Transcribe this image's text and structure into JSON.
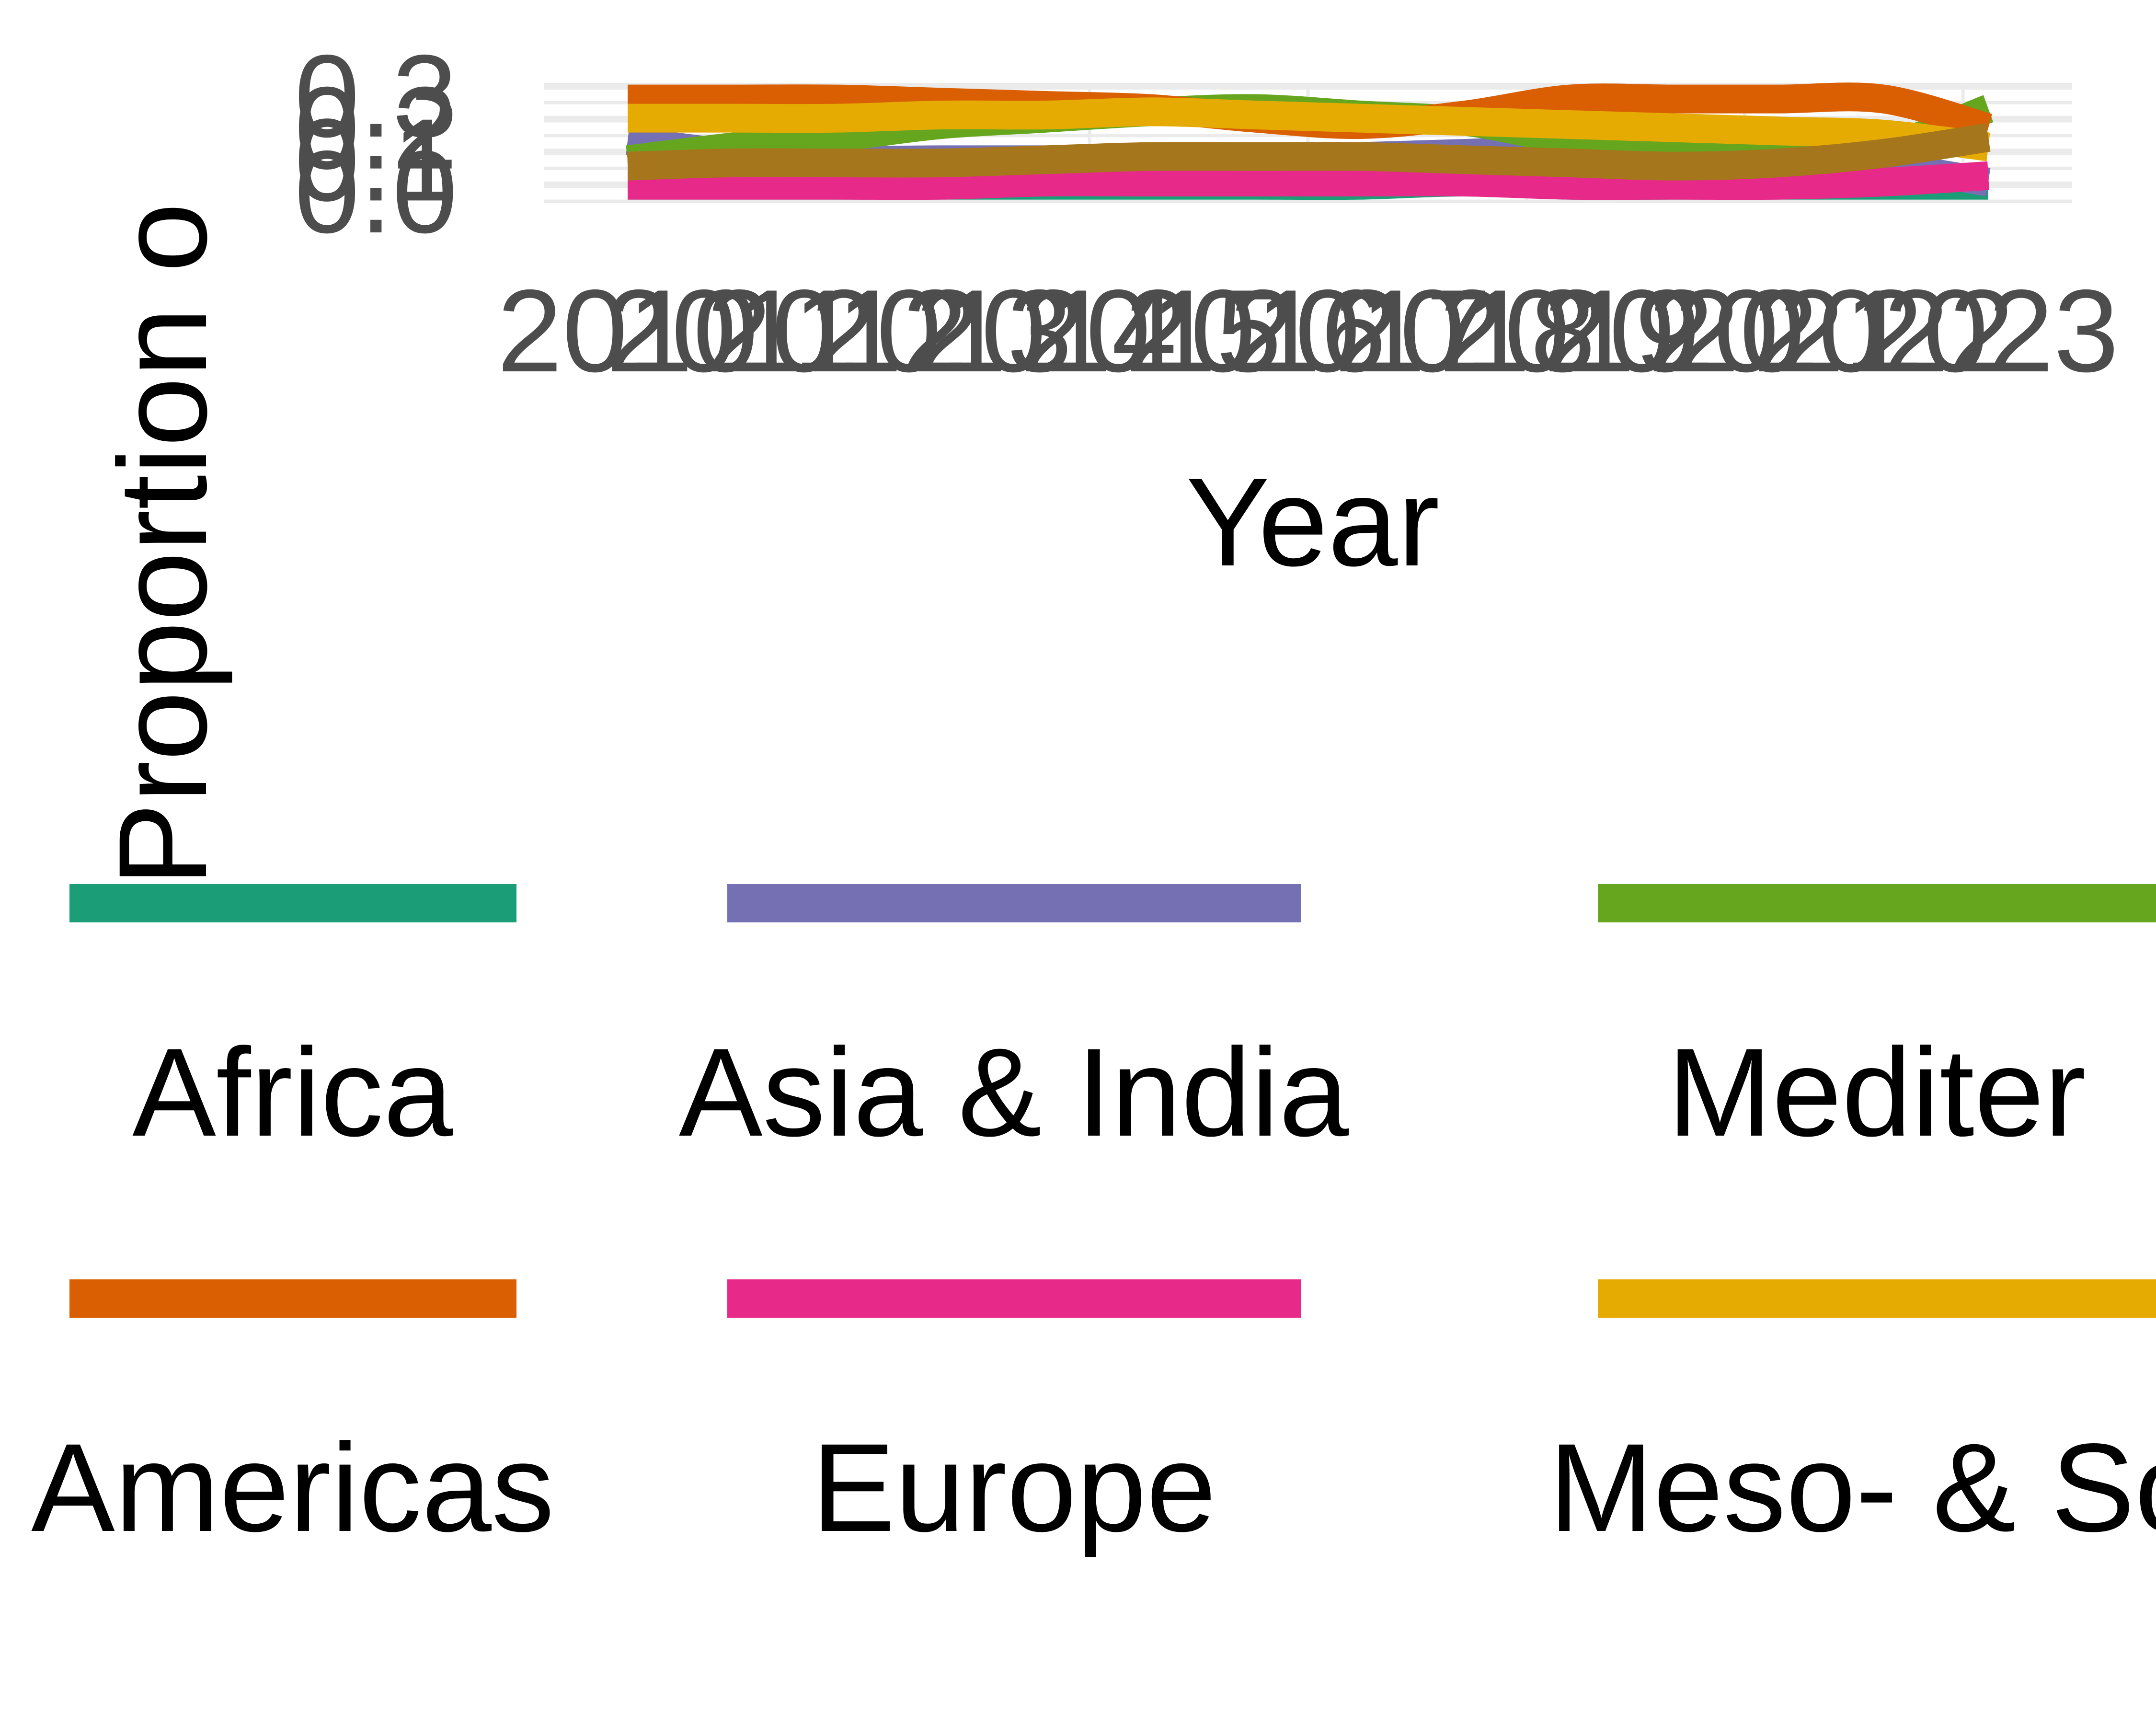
{
  "chart_data": {
    "type": "line",
    "title": "",
    "xlabel": "Year",
    "ylabel": "Proportion o",
    "x": [
      "2010",
      "2011",
      "2012",
      "2013",
      "2014",
      "2015",
      "2016",
      "2017",
      "2018",
      "2019",
      "2020",
      "2021",
      "2022",
      "2023"
    ],
    "x_tick_labels": [
      "2010",
      "2011",
      "2012",
      "2013",
      "2014",
      "2015",
      "2016",
      "2017",
      "2018",
      "2019",
      "2020",
      "2021",
      "2022",
      "2023"
    ],
    "y_tick_labels": [
      "0.0",
      "0.1",
      "0.2",
      "0.3"
    ],
    "ylim": [
      0.0,
      0.3
    ],
    "grid": true,
    "legend": "bottom",
    "series": [
      {
        "name": "Africa",
        "color": "#1b9e77",
        "values": [
          0.02,
          0.02,
          0.02,
          0.02,
          0.02,
          0.02,
          0.02,
          0.02,
          0.03,
          0.02,
          0.02,
          0.02,
          0.02,
          0.02
        ]
      },
      {
        "name": "Asia & India",
        "color": "#7570b3",
        "values": [
          0.16,
          0.12,
          0.1,
          0.1,
          0.1,
          0.1,
          0.1,
          0.11,
          0.12,
          0.13,
          0.12,
          0.1,
          0.08,
          0.03
        ]
      },
      {
        "name": "Mediter",
        "color": "#66a61e",
        "values": [
          0.1,
          0.14,
          0.17,
          0.21,
          0.23,
          0.25,
          0.26,
          0.24,
          0.22,
          0.16,
          0.12,
          0.12,
          0.14,
          0.26
        ]
      },
      {
        "name": "Americas",
        "color": "#d95f02",
        "values": [
          0.29,
          0.29,
          0.29,
          0.28,
          0.27,
          0.26,
          0.23,
          0.21,
          0.24,
          0.29,
          0.29,
          0.29,
          0.29,
          0.2
        ]
      },
      {
        "name": "Europe",
        "color": "#e7298a",
        "values": [
          0.02,
          0.02,
          0.02,
          0.02,
          0.03,
          0.03,
          0.03,
          0.03,
          0.03,
          0.02,
          0.02,
          0.02,
          0.03,
          0.05
        ]
      },
      {
        "name": "Meso- & So",
        "color": "#e6ab02",
        "values": [
          0.23,
          0.23,
          0.23,
          0.24,
          0.24,
          0.25,
          0.24,
          0.23,
          0.22,
          0.21,
          0.2,
          0.19,
          0.18,
          0.14
        ]
      },
      {
        "name": "",
        "color": "#a6761d",
        "values": [
          0.08,
          0.09,
          0.09,
          0.09,
          0.1,
          0.11,
          0.11,
          0.11,
          0.1,
          0.09,
          0.08,
          0.09,
          0.12,
          0.17
        ]
      }
    ]
  }
}
